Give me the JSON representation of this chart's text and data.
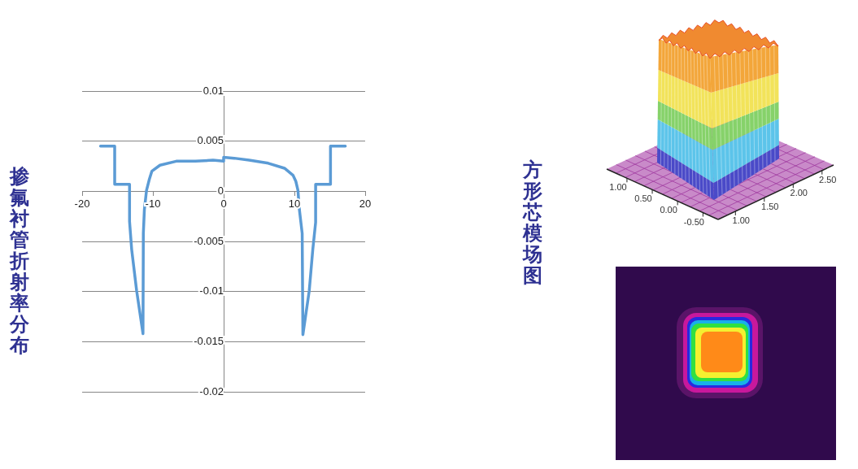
{
  "chart_data": [
    {
      "type": "line",
      "title": "掺氟衬管折射率分布",
      "x": [
        -17.4,
        -15.4,
        -15.4,
        -13.3,
        -13.3,
        -13.0,
        -12.3,
        -11.4,
        -11.35,
        -11.2,
        -10.9,
        -10.5,
        -10.15,
        -9.0,
        -6.7,
        -4.0,
        -1.5,
        0,
        0,
        1.5,
        3.6,
        6.3,
        8.6,
        9.8,
        10.2,
        10.5,
        10.7,
        11.1,
        11.2,
        12.1,
        12.6,
        13.0,
        13.0,
        15.1,
        15.1,
        17.2
      ],
      "values": [
        0.0045,
        0.0045,
        0.0007,
        0.0007,
        -0.003,
        -0.0058,
        -0.0099,
        -0.0142,
        -0.0042,
        -0.0018,
        0.0001,
        0.0012,
        0.002,
        0.0026,
        0.003,
        0.003,
        0.0031,
        0.003,
        0.0034,
        0.0033,
        0.0031,
        0.0028,
        0.0023,
        0.0016,
        0.001,
        0.0001,
        -0.0018,
        -0.0042,
        -0.0143,
        -0.0099,
        -0.0058,
        -0.0031,
        0.0007,
        0.0007,
        0.0045,
        0.0045
      ],
      "color": "#5b9bd5",
      "xlim": [
        -20,
        20
      ],
      "xticks": [
        -20,
        -10,
        0,
        10,
        20
      ],
      "ylim": [
        -0.02,
        0.01
      ],
      "yticks": [
        -0.02,
        -0.015,
        -0.01,
        -0.005,
        0,
        0.005,
        0.01
      ],
      "grid": "y"
    },
    {
      "type": "other",
      "title": "方形芯模场图",
      "annotations": [
        "1.00",
        "0.50",
        "0.00",
        "-0.50",
        "1.00",
        "1.50",
        "2.00",
        "2.50"
      ]
    }
  ]
}
